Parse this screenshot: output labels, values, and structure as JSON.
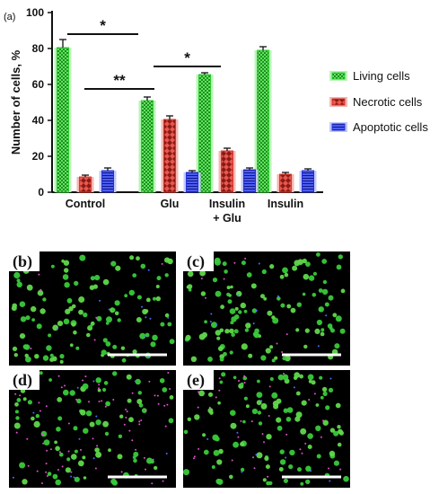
{
  "figure_label": "(a)",
  "colors": {
    "living": "#34c934",
    "living_fill": "#5fe35f",
    "necrotic": "#d9342b",
    "necrotic_fill": "#e8574e",
    "apoptotic": "#2431d6",
    "apoptotic_fill": "#4a5cf0",
    "text": "#111111",
    "micro_bg": "#000000",
    "scale_bar": "#ffffff"
  },
  "chart_data": {
    "type": "bar",
    "title": "",
    "xlabel": "",
    "ylabel": "Number of cells, %",
    "ylim": [
      0,
      100
    ],
    "yticks": [
      0,
      20,
      40,
      60,
      80,
      100
    ],
    "grid": false,
    "legend_position": "right",
    "categories": [
      {
        "line1": "Control",
        "line2": ""
      },
      {
        "line1": "Glu",
        "line2": ""
      },
      {
        "line1": "Insulin",
        "line2": "+ Glu"
      },
      {
        "line1": "Insulin",
        "line2": ""
      }
    ],
    "series": [
      {
        "name": "Living cells",
        "color_key": "living",
        "values": [
          80.5,
          51,
          65.5,
          79
        ],
        "errors": [
          4.5,
          2,
          1,
          2
        ]
      },
      {
        "name": "Necrotic cells",
        "color_key": "necrotic",
        "values": [
          8.5,
          40.5,
          23,
          10
        ],
        "errors": [
          1,
          2,
          1.5,
          1
        ]
      },
      {
        "name": "Apoptotic cells",
        "color_key": "apoptotic",
        "values": [
          12,
          11,
          12.5,
          12
        ],
        "errors": [
          1.5,
          1,
          1,
          1
        ]
      }
    ],
    "significance": [
      {
        "label": "*",
        "from_category": 0,
        "to_category": 1,
        "y": 88
      },
      {
        "label": "**",
        "from_category": 0,
        "to_category": 1,
        "y": 57.5
      },
      {
        "label": "*",
        "from_category": 1,
        "to_category": 2,
        "y": 70
      }
    ]
  },
  "micrographs": [
    {
      "label": "(b)",
      "seed": 11,
      "green": 120,
      "red": 6,
      "blue": 10,
      "scale_bar": true
    },
    {
      "label": "(c)",
      "seed": 23,
      "green": 125,
      "red": 8,
      "blue": 10,
      "scale_bar": true
    },
    {
      "label": "(d)",
      "seed": 37,
      "green": 85,
      "red": 70,
      "blue": 12,
      "scale_bar": true
    },
    {
      "label": "(e)",
      "seed": 51,
      "green": 110,
      "red": 35,
      "blue": 12,
      "scale_bar": true
    }
  ]
}
